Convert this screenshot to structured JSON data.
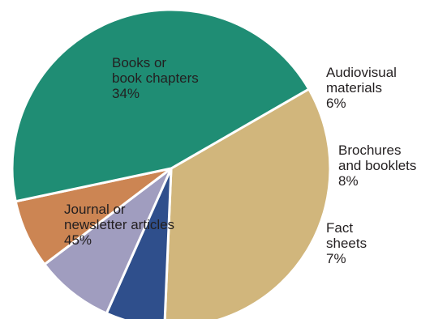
{
  "chart_data": {
    "type": "pie",
    "title": "",
    "slices": [
      {
        "name": "Books or book chapters",
        "value": 34,
        "label_lines": [
          "Books or",
          "book chapters",
          "34%"
        ],
        "color": "#d1b67c",
        "label_color": "#231f20"
      },
      {
        "name": "Audiovisual materials",
        "value": 6,
        "label_lines": [
          "Audiovisual",
          "materials",
          "6%"
        ],
        "color": "#2f4f8c",
        "label_color": "#231f20"
      },
      {
        "name": "Brochures and booklets",
        "value": 8,
        "label_lines": [
          "Brochures",
          "and booklets",
          "8%"
        ],
        "color": "#a09dbf",
        "label_color": "#231f20"
      },
      {
        "name": "Fact sheets",
        "value": 7,
        "label_lines": [
          "Fact",
          "sheets",
          "7%"
        ],
        "color": "#cc8553",
        "label_color": "#231f20"
      },
      {
        "name": "Journal or newsletter articles",
        "value": 45,
        "label_lines": [
          "Journal or",
          "newsletter articles",
          "45%"
        ],
        "color": "#1f8d74",
        "label_color": "#ffffff"
      }
    ]
  }
}
